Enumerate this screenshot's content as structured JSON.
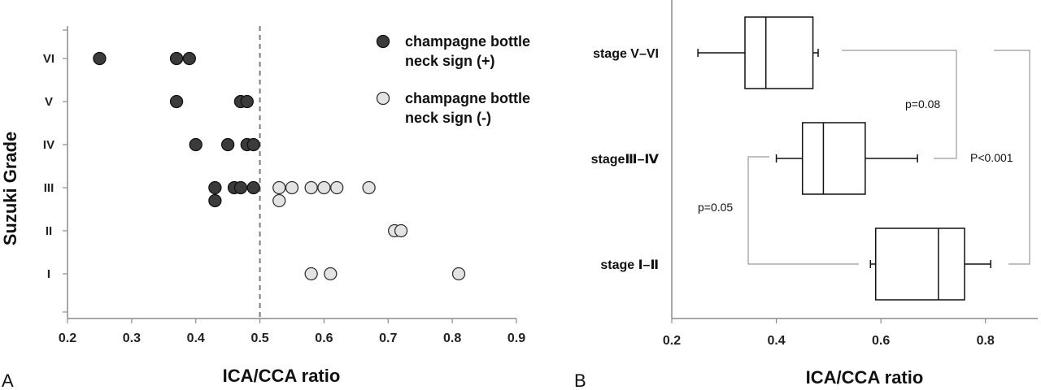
{
  "chart_data": [
    {
      "type": "scatter",
      "panel_label": "A",
      "xlabel": "ICA/CCA ratio",
      "ylabel": "Suzuki Grade",
      "xlim": [
        0.2,
        0.9
      ],
      "x_ticks": [
        "0.2",
        "0.3",
        "0.4",
        "0.5",
        "0.6",
        "0.7",
        "0.8",
        "0.9"
      ],
      "categories": [
        "VI",
        "V",
        "IV",
        "III",
        "II",
        "I"
      ],
      "threshold_x": 0.5,
      "legend_placement": "top-right",
      "series": [
        {
          "name": "champagne bottle neck sign (+)",
          "legend_lines": [
            "champagne bottle",
            "neck sign (+)"
          ],
          "color": "#3b3b3b",
          "points": [
            {
              "grade": "VI",
              "x": 0.25
            },
            {
              "grade": "VI",
              "x": 0.37
            },
            {
              "grade": "VI",
              "x": 0.39
            },
            {
              "grade": "V",
              "x": 0.37
            },
            {
              "grade": "V",
              "x": 0.47
            },
            {
              "grade": "V",
              "x": 0.48
            },
            {
              "grade": "IV",
              "x": 0.4
            },
            {
              "grade": "IV",
              "x": 0.45
            },
            {
              "grade": "IV",
              "x": 0.48
            },
            {
              "grade": "IV",
              "x": 0.49
            },
            {
              "grade": "III",
              "x": 0.43
            },
            {
              "grade": "III",
              "x": 0.46
            },
            {
              "grade": "III",
              "x": 0.47
            },
            {
              "grade": "III",
              "x": 0.49
            },
            {
              "grade": "III",
              "x": 0.43,
              "offset": 1
            }
          ]
        },
        {
          "name": "champagne bottle neck sign (-)",
          "legend_lines": [
            "champagne bottle",
            "neck sign (-)"
          ],
          "color": "#e3e3e3",
          "points": [
            {
              "grade": "III",
              "x": 0.53
            },
            {
              "grade": "III",
              "x": 0.55
            },
            {
              "grade": "III",
              "x": 0.58
            },
            {
              "grade": "III",
              "x": 0.6
            },
            {
              "grade": "III",
              "x": 0.62
            },
            {
              "grade": "III",
              "x": 0.67
            },
            {
              "grade": "III",
              "x": 0.53,
              "offset": 1
            },
            {
              "grade": "II",
              "x": 0.71
            },
            {
              "grade": "II",
              "x": 0.72
            },
            {
              "grade": "I",
              "x": 0.58
            },
            {
              "grade": "I",
              "x": 0.61
            },
            {
              "grade": "I",
              "x": 0.81
            }
          ]
        }
      ]
    },
    {
      "type": "box",
      "panel_label": "B",
      "xlabel": "ICA/CCA ratio",
      "xlim": [
        0.2,
        0.9
      ],
      "x_ticks": [
        "0.2",
        "0.4",
        "0.6",
        "0.8"
      ],
      "groups": [
        {
          "label": "stage V–VI",
          "min": 0.25,
          "q1": 0.34,
          "median": 0.38,
          "q3": 0.47,
          "max": 0.48
        },
        {
          "label": "stageⅢ–Ⅳ",
          "min": 0.4,
          "q1": 0.45,
          "median": 0.49,
          "q3": 0.57,
          "max": 0.67
        },
        {
          "label": "stage Ⅰ–Ⅱ",
          "min": 0.58,
          "q1": 0.59,
          "median": 0.71,
          "q3": 0.76,
          "max": 0.81
        }
      ],
      "comparisons": [
        {
          "groups": [
            "stage V–VI",
            "stageⅢ–Ⅳ"
          ],
          "label": "p=0.08"
        },
        {
          "groups": [
            "stageⅢ–Ⅳ",
            "stage Ⅰ–Ⅱ"
          ],
          "label": "p=0.05"
        },
        {
          "groups": [
            "stage V–VI",
            "stage Ⅰ–Ⅱ"
          ],
          "label": "P<0.001"
        }
      ]
    }
  ]
}
